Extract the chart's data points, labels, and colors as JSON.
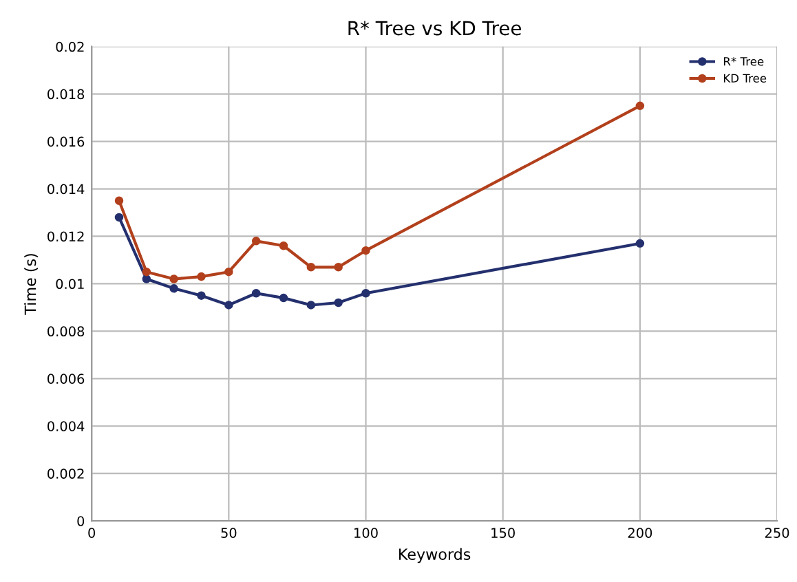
{
  "chart_data": {
    "type": "line",
    "title": "R* Tree vs KD Tree",
    "xlabel": "Keywords",
    "ylabel": "Time (s)",
    "x": [
      10,
      20,
      30,
      40,
      50,
      60,
      70,
      80,
      90,
      100,
      200
    ],
    "series": [
      {
        "name": "R* Tree",
        "color": "#24306e",
        "values": [
          0.0128,
          0.0102,
          0.0098,
          0.0095,
          0.0091,
          0.0096,
          0.0094,
          0.0091,
          0.0092,
          0.0096,
          0.0117
        ]
      },
      {
        "name": "KD Tree",
        "color": "#b2401c",
        "values": [
          0.0135,
          0.0105,
          0.0102,
          0.0103,
          0.0105,
          0.0118,
          0.0116,
          0.0107,
          0.0107,
          0.0114,
          0.0175
        ]
      }
    ],
    "xlim": [
      0,
      250
    ],
    "xticks": [
      0,
      50,
      100,
      150,
      200,
      250
    ],
    "ylim": [
      0,
      0.02
    ],
    "yticks": [
      0,
      0.002,
      0.004,
      0.006,
      0.008,
      0.01,
      0.012,
      0.014,
      0.016,
      0.018,
      0.02
    ],
    "grid": true,
    "legend": "top right",
    "marker": "circle",
    "line_style": "solid"
  }
}
